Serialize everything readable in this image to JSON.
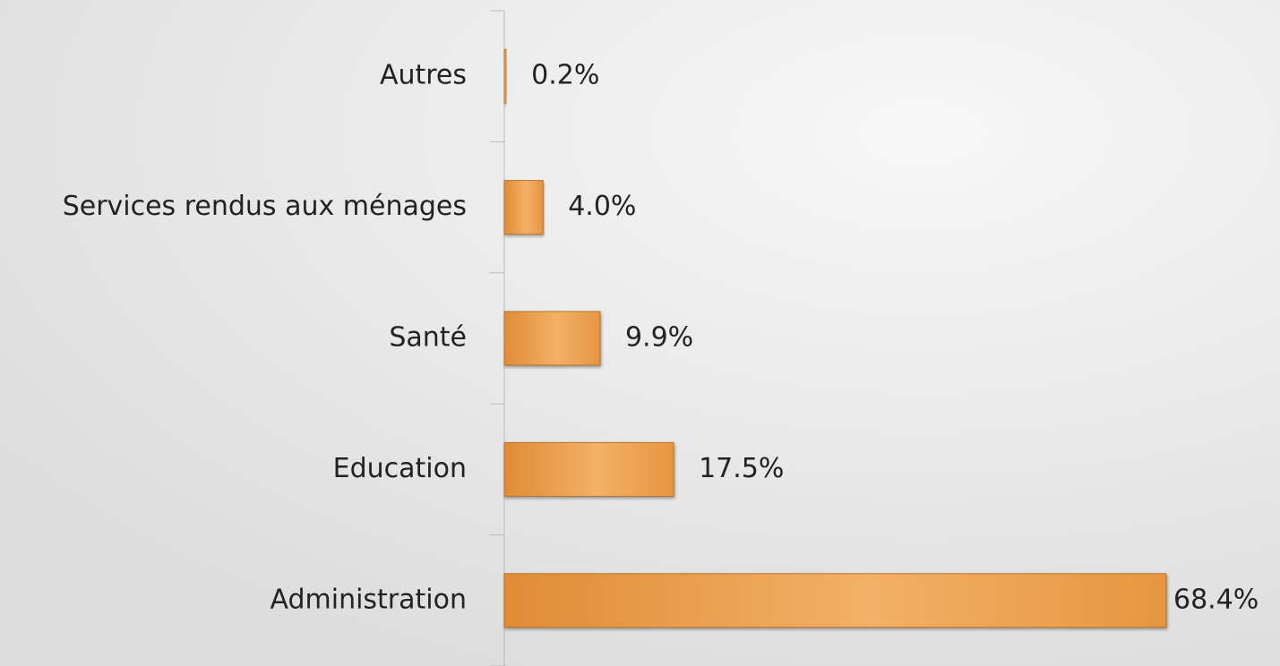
{
  "chart_data": {
    "type": "bar",
    "orientation": "horizontal",
    "categories": [
      "Autres",
      "Services rendus aux ménages",
      "Santé",
      "Education",
      "Administration"
    ],
    "values": [
      0.2,
      4.0,
      9.9,
      17.5,
      68.4
    ],
    "value_labels": [
      "0.2%",
      "4.0%",
      "9.9%",
      "17.5%",
      "68.4%"
    ],
    "color": "#eb9c48"
  }
}
